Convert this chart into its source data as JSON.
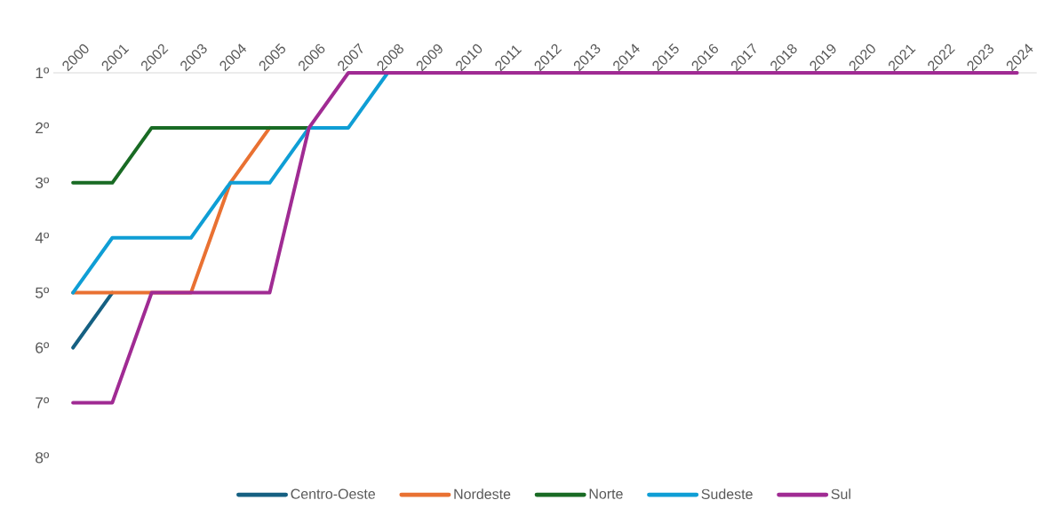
{
  "chart_data": {
    "type": "line",
    "categories": [
      "2000",
      "2001",
      "2002",
      "2003",
      "2004",
      "2005",
      "2006",
      "2007",
      "2008",
      "2009",
      "2010",
      "2011",
      "2012",
      "2013",
      "2014",
      "2015",
      "2016",
      "2017",
      "2018",
      "2019",
      "2020",
      "2021",
      "2022",
      "2023",
      "2024"
    ],
    "series": [
      {
        "name": "Centro-Oeste",
        "color": "#156082",
        "values": [
          6,
          5,
          null,
          null,
          null,
          null,
          null,
          null,
          null,
          null,
          null,
          null,
          null,
          null,
          null,
          null,
          null,
          null,
          null,
          null,
          null,
          null,
          null,
          null,
          null
        ]
      },
      {
        "name": "Nordeste",
        "color": "#e97132",
        "values": [
          5,
          5,
          5,
          5,
          3,
          2,
          null,
          null,
          null,
          null,
          null,
          null,
          null,
          null,
          null,
          null,
          null,
          null,
          null,
          null,
          null,
          null,
          null,
          null,
          null
        ]
      },
      {
        "name": "Norte",
        "color": "#196b24",
        "values": [
          3,
          3,
          2,
          2,
          2,
          2,
          2,
          null,
          null,
          null,
          null,
          null,
          null,
          null,
          null,
          null,
          null,
          null,
          null,
          null,
          null,
          null,
          null,
          null,
          null
        ]
      },
      {
        "name": "Sudeste",
        "color": "#0f9ed5",
        "values": [
          5,
          4,
          4,
          4,
          3,
          3,
          2,
          2,
          1,
          null,
          null,
          null,
          null,
          null,
          null,
          null,
          null,
          null,
          null,
          null,
          null,
          null,
          null,
          null,
          null
        ]
      },
      {
        "name": "Sul",
        "color": "#a02b93",
        "values": [
          7,
          7,
          5,
          5,
          5,
          5,
          2,
          1,
          1,
          1,
          1,
          1,
          1,
          1,
          1,
          1,
          1,
          1,
          1,
          1,
          1,
          1,
          1,
          1,
          1
        ]
      }
    ],
    "ylim": [
      8,
      1
    ],
    "yticks": [
      {
        "value": 1,
        "label": "1º"
      },
      {
        "value": 2,
        "label": "2º"
      },
      {
        "value": 3,
        "label": "3º"
      },
      {
        "value": 4,
        "label": "4º"
      },
      {
        "value": 5,
        "label": "5º"
      },
      {
        "value": 6,
        "label": "6º"
      },
      {
        "value": 7,
        "label": "7º"
      },
      {
        "value": 8,
        "label": "8º"
      }
    ],
    "legend": "bottom",
    "marker": "none",
    "line_style": "solid",
    "grid": false
  }
}
